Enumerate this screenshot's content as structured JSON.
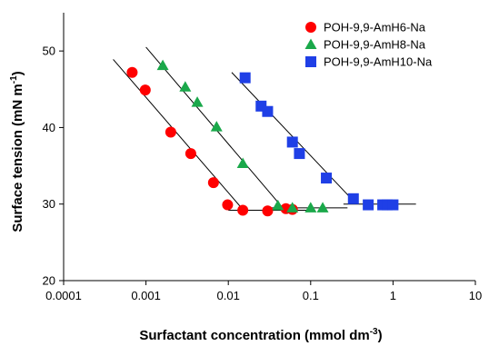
{
  "chart_data": {
    "type": "scatter",
    "x_scale": "log",
    "xlim": [
      0.0001,
      10
    ],
    "ylim": [
      20,
      55
    ],
    "x_ticks": [
      0.0001,
      0.001,
      0.01,
      0.1,
      1,
      10
    ],
    "x_tick_labels": [
      "0.0001",
      "0.001",
      "0.01",
      "0.1",
      "1",
      "10"
    ],
    "y_ticks": [
      20,
      30,
      40,
      50
    ],
    "y_tick_labels": [
      "20",
      "30",
      "40",
      "50"
    ],
    "xlabel": "Surfactant concentration (mmol dm",
    "xlabel_sup": "-3",
    "xlabel_end": ")",
    "ylabel": "Surface tension (mN m",
    "ylabel_sup": "-1",
    "ylabel_end": ")",
    "grid": false,
    "legend_position": "top-right",
    "series": [
      {
        "name": "POH-9,9-AmH6-Na",
        "color": "#ff0000",
        "marker": "circle",
        "points": [
          [
            0.00068,
            47.2
          ],
          [
            0.00098,
            44.9
          ],
          [
            0.002,
            39.4
          ],
          [
            0.0035,
            36.6
          ],
          [
            0.0066,
            32.8
          ],
          [
            0.0098,
            29.9
          ],
          [
            0.015,
            29.2
          ],
          [
            0.03,
            29.1
          ],
          [
            0.05,
            29.4
          ],
          [
            0.06,
            29.3
          ]
        ],
        "fit_lines": [
          {
            "x": [
              0.0004,
              0.015
            ],
            "y": [
              48.9,
              29.3
            ]
          },
          {
            "x": [
              0.01,
              0.1
            ],
            "y": [
              29.2,
              29.2
            ]
          }
        ]
      },
      {
        "name": "POH-9,9-AmH8-Na",
        "color": "#1aa84a",
        "marker": "triangle",
        "points": [
          [
            0.0016,
            48.1
          ],
          [
            0.003,
            45.3
          ],
          [
            0.0042,
            43.3
          ],
          [
            0.0072,
            40.1
          ],
          [
            0.015,
            35.3
          ],
          [
            0.04,
            29.8
          ],
          [
            0.06,
            29.5
          ],
          [
            0.1,
            29.5
          ],
          [
            0.14,
            29.5
          ]
        ],
        "fit_lines": [
          {
            "x": [
              0.001,
              0.045
            ],
            "y": [
              50.5,
              29.6
            ]
          },
          {
            "x": [
              0.03,
              0.28
            ],
            "y": [
              29.5,
              29.5
            ]
          }
        ]
      },
      {
        "name": "POH-9,9-AmH10-Na",
        "color": "#1f3fe6",
        "marker": "square",
        "points": [
          [
            0.016,
            46.5
          ],
          [
            0.025,
            42.8
          ],
          [
            0.03,
            42.1
          ],
          [
            0.06,
            38.1
          ],
          [
            0.073,
            36.6
          ],
          [
            0.155,
            33.4
          ],
          [
            0.33,
            30.7
          ],
          [
            0.5,
            29.9
          ],
          [
            0.75,
            29.9
          ],
          [
            0.85,
            29.9
          ],
          [
            1.0,
            29.9
          ]
        ],
        "fit_lines": [
          {
            "x": [
              0.011,
              0.36
            ],
            "y": [
              47.2,
              30.0
            ]
          },
          {
            "x": [
              0.25,
              1.9
            ],
            "y": [
              30.0,
              30.0
            ]
          }
        ]
      }
    ]
  }
}
